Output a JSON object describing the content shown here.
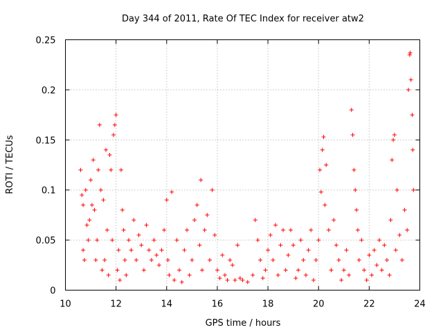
{
  "chart_data": {
    "type": "scatter",
    "title": "Day 344 of 2011, Rate Of TEC Index for receiver atw2",
    "xlabel": "GPS time / hours",
    "ylabel": "ROTI / TECUs",
    "xlim": [
      10,
      24
    ],
    "ylim": [
      0,
      0.25
    ],
    "x_ticks": [
      10,
      12,
      14,
      16,
      18,
      20,
      22,
      24
    ],
    "y_ticks": [
      0,
      0.05,
      0.1,
      0.15,
      0.2,
      0.25
    ],
    "x_tick_labels": [
      "10",
      "12",
      "14",
      "16",
      "18",
      "20",
      "22",
      "24"
    ],
    "y_tick_labels": [
      "0",
      "0.05",
      "0.1",
      "0.15",
      "0.2",
      "0.25"
    ],
    "grid": true,
    "marker": "+",
    "color": "#ff0000",
    "series": [
      {
        "name": "ROTI",
        "points": [
          [
            10.6,
            0.12
          ],
          [
            10.65,
            0.095
          ],
          [
            10.7,
            0.085
          ],
          [
            10.7,
            0.04
          ],
          [
            10.75,
            0.03
          ],
          [
            10.8,
            0.1
          ],
          [
            10.85,
            0.065
          ],
          [
            10.9,
            0.05
          ],
          [
            10.95,
            0.07
          ],
          [
            11.0,
            0.11
          ],
          [
            11.05,
            0.085
          ],
          [
            11.1,
            0.13
          ],
          [
            11.15,
            0.08
          ],
          [
            11.2,
            0.03
          ],
          [
            11.25,
            0.05
          ],
          [
            11.3,
            0.12
          ],
          [
            11.35,
            0.165
          ],
          [
            11.4,
            0.1
          ],
          [
            11.45,
            0.02
          ],
          [
            11.5,
            0.09
          ],
          [
            11.55,
            0.03
          ],
          [
            11.6,
            0.14
          ],
          [
            11.65,
            0.06
          ],
          [
            11.7,
            0.015
          ],
          [
            11.75,
            0.135
          ],
          [
            11.8,
            0.12
          ],
          [
            11.85,
            0.05
          ],
          [
            11.9,
            0.155
          ],
          [
            11.95,
            0.165
          ],
          [
            12.0,
            0.175
          ],
          [
            12.05,
            0.02
          ],
          [
            12.1,
            0.04
          ],
          [
            12.15,
            0.01
          ],
          [
            12.2,
            0.12
          ],
          [
            12.25,
            0.08
          ],
          [
            12.3,
            0.06
          ],
          [
            12.35,
            0.03
          ],
          [
            12.4,
            0.015
          ],
          [
            12.5,
            0.05
          ],
          [
            12.6,
            0.04
          ],
          [
            12.7,
            0.07
          ],
          [
            12.8,
            0.03
          ],
          [
            12.9,
            0.055
          ],
          [
            13.0,
            0.045
          ],
          [
            13.1,
            0.02
          ],
          [
            13.2,
            0.065
          ],
          [
            13.3,
            0.04
          ],
          [
            13.4,
            0.03
          ],
          [
            13.5,
            0.05
          ],
          [
            13.6,
            0.035
          ],
          [
            13.7,
            0.025
          ],
          [
            13.8,
            0.04
          ],
          [
            13.9,
            0.06
          ],
          [
            14.0,
            0.09
          ],
          [
            14.05,
            0.03
          ],
          [
            14.1,
            0.015
          ],
          [
            14.2,
            0.098
          ],
          [
            14.3,
            0.01
          ],
          [
            14.4,
            0.05
          ],
          [
            14.5,
            0.02
          ],
          [
            14.6,
            0.008
          ],
          [
            14.7,
            0.04
          ],
          [
            14.8,
            0.06
          ],
          [
            14.9,
            0.015
          ],
          [
            15.0,
            0.03
          ],
          [
            15.1,
            0.07
          ],
          [
            15.2,
            0.085
          ],
          [
            15.3,
            0.045
          ],
          [
            15.35,
            0.11
          ],
          [
            15.4,
            0.02
          ],
          [
            15.5,
            0.06
          ],
          [
            15.6,
            0.075
          ],
          [
            15.7,
            0.03
          ],
          [
            15.8,
            0.1
          ],
          [
            15.9,
            0.055
          ],
          [
            16.0,
            0.02
          ],
          [
            16.1,
            0.012
          ],
          [
            16.2,
            0.035
          ],
          [
            16.3,
            0.015
          ],
          [
            16.4,
            0.01
          ],
          [
            16.5,
            0.03
          ],
          [
            16.6,
            0.025
          ],
          [
            16.7,
            0.01
          ],
          [
            16.8,
            0.045
          ],
          [
            16.9,
            0.012
          ],
          [
            17.0,
            0.01
          ],
          [
            17.2,
            0.008
          ],
          [
            17.4,
            0.015
          ],
          [
            17.5,
            0.07
          ],
          [
            17.6,
            0.05
          ],
          [
            17.7,
            0.03
          ],
          [
            17.8,
            0.012
          ],
          [
            17.9,
            0.02
          ],
          [
            18.0,
            0.04
          ],
          [
            18.1,
            0.055
          ],
          [
            18.2,
            0.03
          ],
          [
            18.3,
            0.065
          ],
          [
            18.4,
            0.015
          ],
          [
            18.5,
            0.045
          ],
          [
            18.6,
            0.06
          ],
          [
            18.7,
            0.02
          ],
          [
            18.8,
            0.035
          ],
          [
            18.9,
            0.06
          ],
          [
            19.0,
            0.045
          ],
          [
            19.1,
            0.012
          ],
          [
            19.2,
            0.02
          ],
          [
            19.3,
            0.05
          ],
          [
            19.4,
            0.03
          ],
          [
            19.5,
            0.015
          ],
          [
            19.6,
            0.04
          ],
          [
            19.7,
            0.06
          ],
          [
            19.8,
            0.01
          ],
          [
            19.9,
            0.03
          ],
          [
            20.0,
            0.05
          ],
          [
            20.05,
            0.12
          ],
          [
            20.1,
            0.098
          ],
          [
            20.15,
            0.14
          ],
          [
            20.2,
            0.153
          ],
          [
            20.25,
            0.085
          ],
          [
            20.3,
            0.125
          ],
          [
            20.4,
            0.06
          ],
          [
            20.5,
            0.02
          ],
          [
            20.6,
            0.07
          ],
          [
            20.7,
            0.045
          ],
          [
            20.8,
            0.03
          ],
          [
            20.9,
            0.01
          ],
          [
            21.0,
            0.02
          ],
          [
            21.1,
            0.04
          ],
          [
            21.2,
            0.015
          ],
          [
            21.3,
            0.18
          ],
          [
            21.35,
            0.155
          ],
          [
            21.4,
            0.12
          ],
          [
            21.45,
            0.1
          ],
          [
            21.5,
            0.08
          ],
          [
            21.55,
            0.06
          ],
          [
            21.6,
            0.03
          ],
          [
            21.7,
            0.05
          ],
          [
            21.8,
            0.02
          ],
          [
            21.9,
            0.01
          ],
          [
            22.0,
            0.035
          ],
          [
            22.1,
            0.015
          ],
          [
            22.2,
            0.04
          ],
          [
            22.3,
            0.025
          ],
          [
            22.4,
            0.05
          ],
          [
            22.5,
            0.02
          ],
          [
            22.6,
            0.045
          ],
          [
            22.7,
            0.03
          ],
          [
            22.8,
            0.015
          ],
          [
            22.85,
            0.07
          ],
          [
            22.9,
            0.13
          ],
          [
            22.95,
            0.15
          ],
          [
            23.0,
            0.155
          ],
          [
            23.05,
            0.04
          ],
          [
            23.1,
            0.1
          ],
          [
            23.2,
            0.055
          ],
          [
            23.3,
            0.03
          ],
          [
            23.4,
            0.08
          ],
          [
            23.5,
            0.06
          ],
          [
            23.55,
            0.2
          ],
          [
            23.6,
            0.235
          ],
          [
            23.62,
            0.237
          ],
          [
            23.65,
            0.21
          ],
          [
            23.7,
            0.175
          ],
          [
            23.72,
            0.14
          ],
          [
            23.75,
            0.1
          ]
        ]
      }
    ]
  }
}
